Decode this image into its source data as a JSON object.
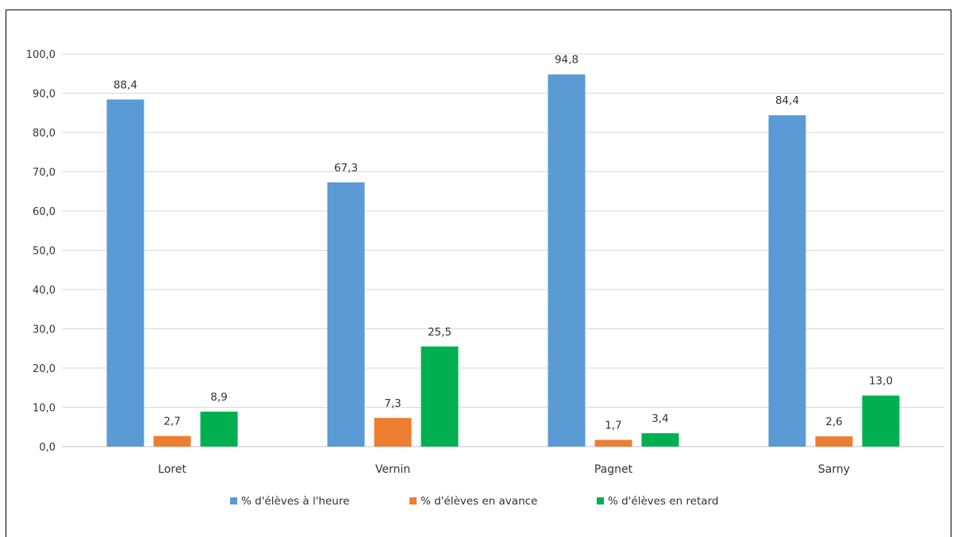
{
  "chart_data": {
    "type": "bar",
    "title": "",
    "xlabel": "",
    "ylabel": "",
    "ylim": [
      0,
      100
    ],
    "y_ticks": [
      "0,0",
      "10,0",
      "20,0",
      "30,0",
      "40,0",
      "50,0",
      "60,0",
      "70,0",
      "80,0",
      "90,0",
      "100,0"
    ],
    "categories": [
      "Loret",
      "Vernin",
      "Pagnet",
      "Sarny"
    ],
    "series": [
      {
        "name": "% d'élèves à l'heure",
        "color": "#5B9BD5",
        "values": [
          88.4,
          67.3,
          94.8,
          84.4
        ],
        "labels": [
          "88,4",
          "67,3",
          "94,8",
          "84,4"
        ]
      },
      {
        "name": "% d'élèves en avance",
        "color": "#ED7D31",
        "values": [
          2.7,
          7.3,
          1.7,
          2.6
        ],
        "labels": [
          "2,7",
          "7,3",
          "1,7",
          "2,6"
        ]
      },
      {
        "name": "% d'élèves en retard",
        "color": "#00B050",
        "values": [
          8.9,
          25.5,
          3.4,
          13.0
        ],
        "labels": [
          "8,9",
          "25,5",
          "3,4",
          "13,0"
        ]
      }
    ],
    "grid": true,
    "legend_position": "bottom"
  }
}
